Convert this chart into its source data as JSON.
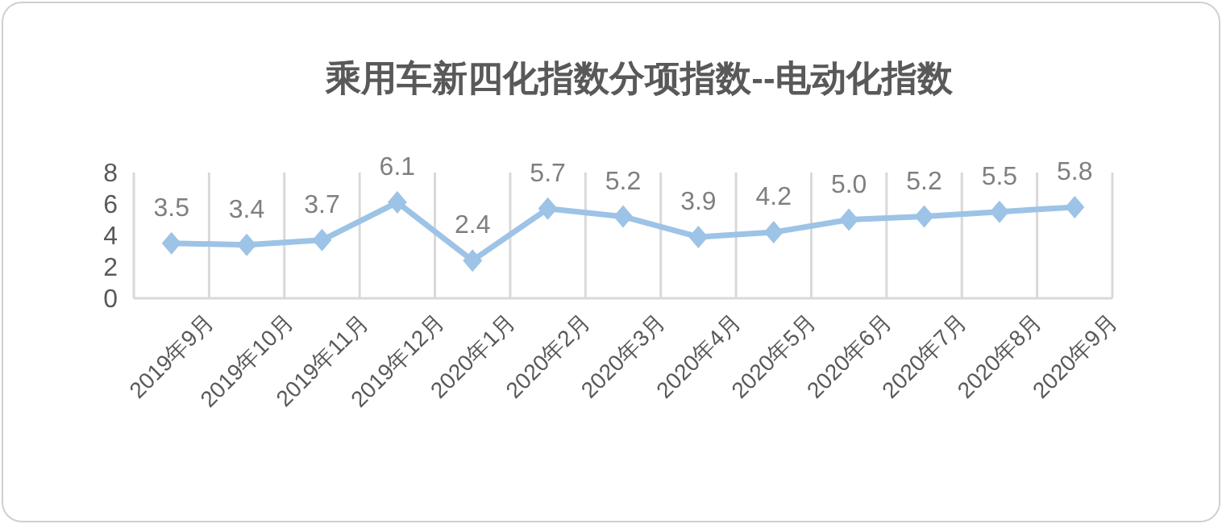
{
  "chart_data": {
    "type": "line",
    "title": "乘用车新四化指数分项指数--电动化指数",
    "categories": [
      "2019年9月",
      "2019年10月",
      "2019年11月",
      "2019年12月",
      "2020年1月",
      "2020年2月",
      "2020年3月",
      "2020年4月",
      "2020年5月",
      "2020年6月",
      "2020年7月",
      "2020年8月",
      "2020年9月"
    ],
    "series": [
      {
        "color": "#9dc3e6",
        "values": [
          3.5,
          3.4,
          3.7,
          6.1,
          2.4,
          5.7,
          5.2,
          3.9,
          4.2,
          5.0,
          5.2,
          5.5,
          5.8
        ],
        "value_labels": [
          "3.5",
          "3.4",
          "3.7",
          "6.1",
          "2.4",
          "5.7",
          "5.2",
          "3.9",
          "4.2",
          "5.0",
          "5.2",
          "5.5",
          "5.8"
        ]
      }
    ],
    "ylim": [
      0,
      8
    ],
    "yticks": [
      0,
      2,
      4,
      6,
      8
    ],
    "grid": "x",
    "marker": "diamond",
    "line_style": "solid"
  }
}
